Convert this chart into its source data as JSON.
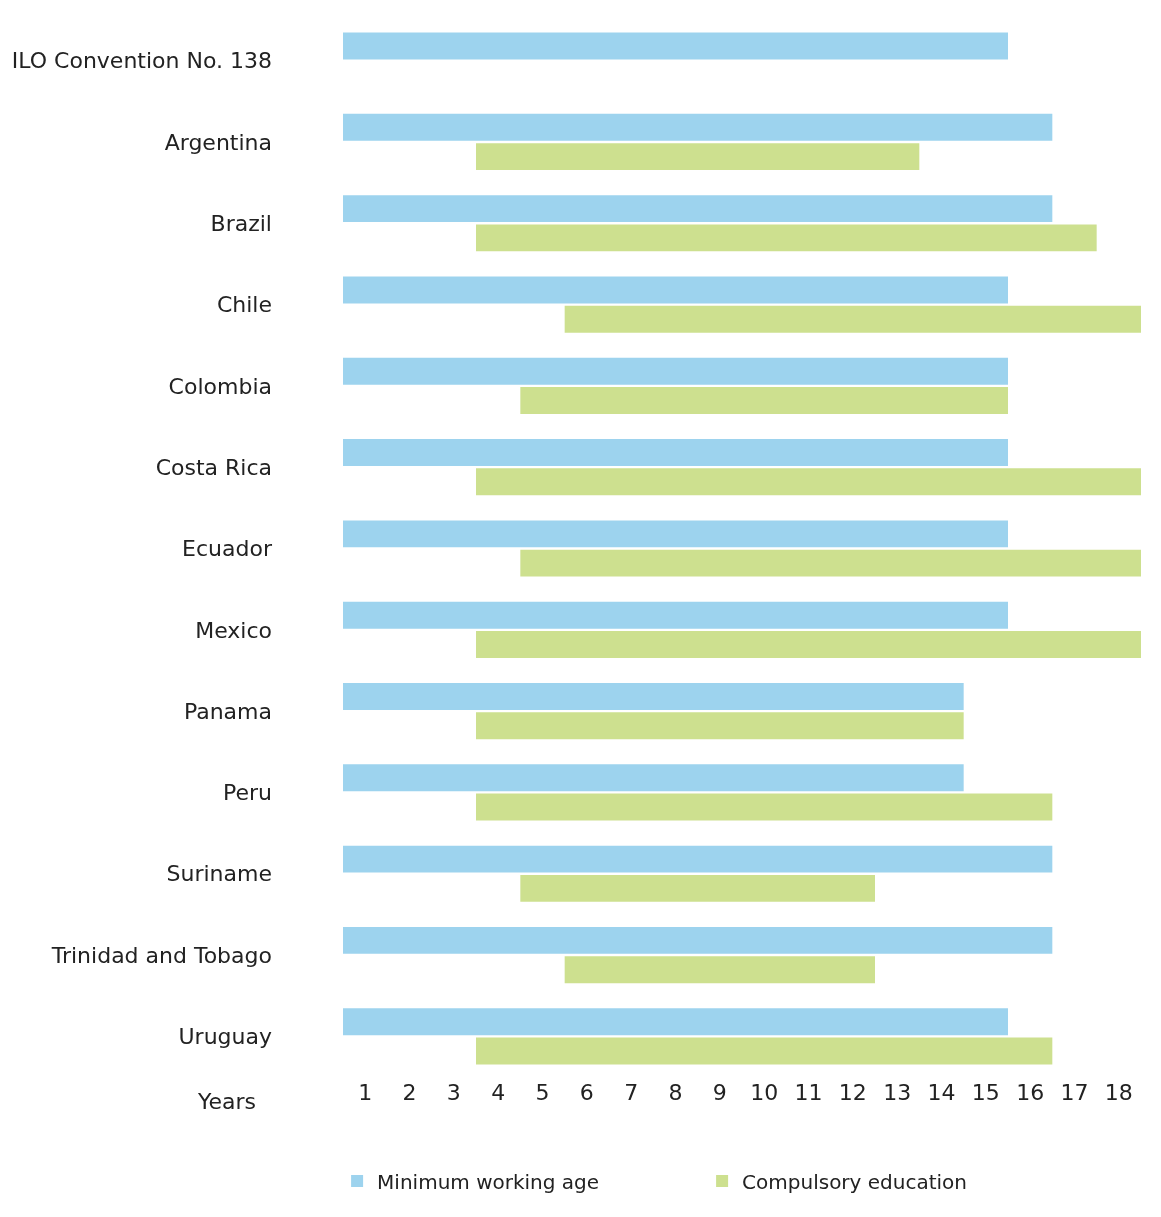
{
  "chart_data": {
    "type": "bar",
    "orientation": "horizontal",
    "xlabel": "Years",
    "categories": [
      "ILO Convention No. 138",
      "Argentina",
      "Brazil",
      "Chile",
      "Colombia",
      "Costa Rica",
      "Ecuador",
      "Mexico",
      "Panama",
      "Peru",
      "Suriname",
      "Trinidad and Tobago",
      "Uruguay"
    ],
    "series": [
      {
        "name": "Minimum working age",
        "color": "#9dd3ee",
        "base": [
          0.5,
          0.5,
          0.5,
          0.5,
          0.5,
          0.5,
          0.5,
          0.5,
          0.5,
          0.5,
          0.5,
          0.5,
          0.5
        ],
        "values": [
          15,
          16,
          16,
          15,
          15,
          15,
          15,
          15,
          14,
          14,
          16,
          16,
          15
        ]
      },
      {
        "name": "Compulsory education",
        "color": "#cde08f",
        "base": [
          null,
          3.5,
          3.5,
          5.5,
          4.5,
          3.5,
          4.5,
          3.5,
          3.5,
          3.5,
          4.5,
          5.5,
          3.5
        ],
        "values": [
          null,
          10,
          14,
          13,
          11,
          15,
          14,
          15,
          11,
          13,
          8,
          7,
          13
        ]
      }
    ],
    "xlim": [
      0.5,
      18.5
    ],
    "xticks": [
      1,
      2,
      3,
      4,
      5,
      6,
      7,
      8,
      9,
      10,
      11,
      12,
      13,
      14,
      15,
      16,
      17,
      18
    ],
    "legend": "bottom"
  }
}
